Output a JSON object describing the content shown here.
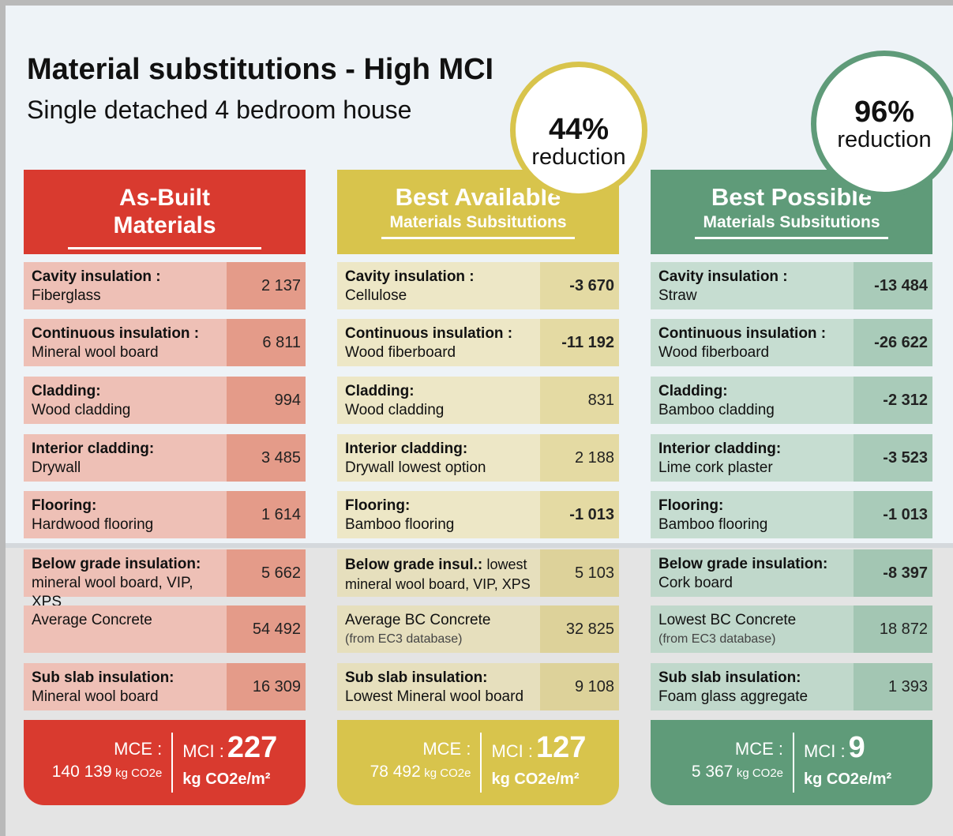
{
  "header": {
    "title": "Material substitutions - High MCI",
    "subtitle": "Single detached 4 bedroom house"
  },
  "columns": [
    {
      "title": "As-Built Materials",
      "subtitle": null,
      "badge": null,
      "rows": [
        {
          "title": "Cavity insulation :",
          "detail": "Fiberglass",
          "value": "2 137"
        },
        {
          "title": "Continuous insulation :",
          "detail": "Mineral wool board",
          "value": "6 811"
        },
        {
          "title": "Cladding:",
          "detail": "Wood cladding",
          "value": "994"
        },
        {
          "title": "Interior cladding:",
          "detail": "Drywall",
          "value": "3 485"
        },
        {
          "title": "Flooring:",
          "detail": "Hardwood flooring",
          "value": "1 614"
        },
        {
          "title": "Below grade insulation:",
          "detail": "mineral wool board, VIP, XPS",
          "value": "5 662"
        },
        {
          "text": "Average Concrete",
          "value": "54 492"
        },
        {
          "title": "Sub slab insulation:",
          "detail": "Mineral wool board",
          "value": "16 309"
        }
      ],
      "footer": {
        "mce_label": "MCE :",
        "mce_value": "140 139",
        "mce_unit": "kg CO2e",
        "mci_label": "MCI :",
        "mci_value": "227",
        "mci_unit": "kg CO2e/m²"
      }
    },
    {
      "title": "Best Available",
      "subtitle": "Materials Subsitutions",
      "badge": {
        "value": "44%",
        "label": "reduction"
      },
      "rows": [
        {
          "title": "Cavity insulation :",
          "detail": "Cellulose",
          "value": "-3 670"
        },
        {
          "title": "Continuous insulation :",
          "detail": "Wood fiberboard",
          "value": "-11 192"
        },
        {
          "title": "Cladding:",
          "detail": "Wood cladding",
          "value": "831"
        },
        {
          "title": "Interior cladding:",
          "detail": "Drywall lowest option",
          "value": "2 188"
        },
        {
          "title": "Flooring:",
          "detail": "Bamboo flooring",
          "value": "-1 013"
        },
        {
          "title": "Below grade insul.:",
          "detail": "lowest mineral wool board, VIP, XPS",
          "value": "5 103"
        },
        {
          "text": "Average BC Concrete",
          "note": "(from EC3 database)",
          "value": "32 825"
        },
        {
          "title": "Sub slab insulation:",
          "detail": "Lowest Mineral wool board",
          "value": "9 108"
        }
      ],
      "footer": {
        "mce_label": "MCE :",
        "mce_value": "78 492",
        "mce_unit": "kg CO2e",
        "mci_label": "MCI :",
        "mci_value": "127",
        "mci_unit": "kg CO2e/m²"
      }
    },
    {
      "title": "Best Possible",
      "subtitle": "Materials Subsitutions",
      "badge": {
        "value": "96%",
        "label": "reduction"
      },
      "rows": [
        {
          "title": "Cavity insulation :",
          "detail": "Straw",
          "value": "-13 484"
        },
        {
          "title": "Continuous insulation :",
          "detail": "Wood fiberboard",
          "value": "-26 622"
        },
        {
          "title": "Cladding:",
          "detail": "Bamboo cladding",
          "value": "-2 312"
        },
        {
          "title": "Interior cladding:",
          "detail": "Lime cork plaster",
          "value": "-3 523"
        },
        {
          "title": "Flooring:",
          "detail": "Bamboo flooring",
          "value": "-1 013"
        },
        {
          "title": "Below grade insulation:",
          "detail": "Cork board",
          "value": "-8 397"
        },
        {
          "text": "Lowest BC Concrete",
          "note": "(from EC3 database)",
          "value": "18 872"
        },
        {
          "title": "Sub slab insulation:",
          "detail": "Foam glass aggregate",
          "value": "1 393"
        }
      ],
      "footer": {
        "mce_label": "MCE :",
        "mce_value": "5 367",
        "mce_unit": "kg CO2e",
        "mci_label": "MCI :",
        "mci_value": "9",
        "mci_unit": "kg CO2e/m²"
      }
    }
  ]
}
